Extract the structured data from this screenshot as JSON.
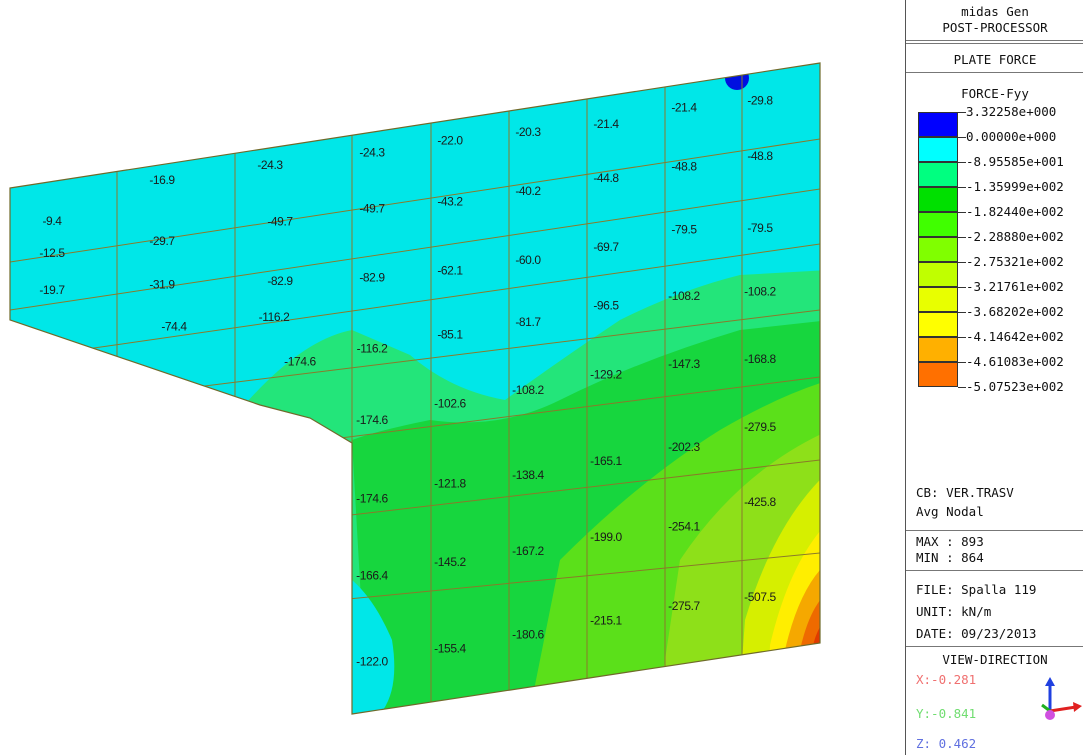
{
  "panel": {
    "app_name": "midas Gen",
    "subtitle": "POST-PROCESSOR",
    "result_type": "PLATE FORCE",
    "component": "FORCE-Fyy",
    "legend": [
      {
        "value": "3.32258e+000",
        "color": "#0000ff"
      },
      {
        "value": "0.00000e+000",
        "color": "#00ffff"
      },
      {
        "value": "-8.95585e+001",
        "color": "#00ff80"
      },
      {
        "value": "-1.35999e+002",
        "color": "#00e000"
      },
      {
        "value": "-1.82440e+002",
        "color": "#40ff00"
      },
      {
        "value": "-2.28880e+002",
        "color": "#80ff00"
      },
      {
        "value": "-2.75321e+002",
        "color": "#c0ff00"
      },
      {
        "value": "-3.21761e+002",
        "color": "#e8ff00"
      },
      {
        "value": "-3.68202e+002",
        "color": "#ffff00"
      },
      {
        "value": "-4.14642e+002",
        "color": "#ffb000"
      },
      {
        "value": "-4.61083e+002",
        "color": "#ff7000"
      },
      {
        "value": "-5.07523e+002",
        "color": "#ff3000"
      }
    ],
    "cb": "CB: VER.TRASV",
    "avg": "Avg Nodal",
    "max": "MAX : 893",
    "min": "MIN : 864",
    "file": "FILE: Spalla 119",
    "unit": "UNIT: kN/m",
    "date": "DATE: 09/23/2013",
    "view_direction": "VIEW-DIRECTION",
    "dir_x": "X:-0.281",
    "dir_y": "Y:-0.841",
    "dir_z": "Z: 0.462"
  },
  "model": {
    "labels": [
      "-9.4",
      "-16.9",
      "-24.3",
      "-24.3",
      "-22.0",
      "-20.3",
      "-21.4",
      "-21.4",
      "-29.8",
      "-48.8",
      "-48.8",
      "-44.8",
      "-40.2",
      "-43.2",
      "-49.7",
      "-49.7",
      "-79.5",
      "-79.5",
      "-69.7",
      "-60.0",
      "-62.1",
      "-82.9",
      "-82.9",
      "-29.7",
      "-12.5",
      "-108.2",
      "-108.2",
      "-96.5",
      "-81.7",
      "-85.1",
      "-116.2",
      "-31.9",
      "-19.7",
      "-74.4",
      "-116.2",
      "-147.3",
      "-168.8",
      "-129.2",
      "-108.2",
      "-102.6",
      "-174.6",
      "-174.6",
      "-279.5",
      "-202.3",
      "-165.1",
      "-138.4",
      "-121.8",
      "-174.6",
      "-425.8",
      "-254.1",
      "-199.0",
      "-167.2",
      "-145.2",
      "-166.4",
      "-507.5",
      "-275.7",
      "-215.1",
      "-180.6",
      "-155.4",
      "-122.0"
    ]
  }
}
